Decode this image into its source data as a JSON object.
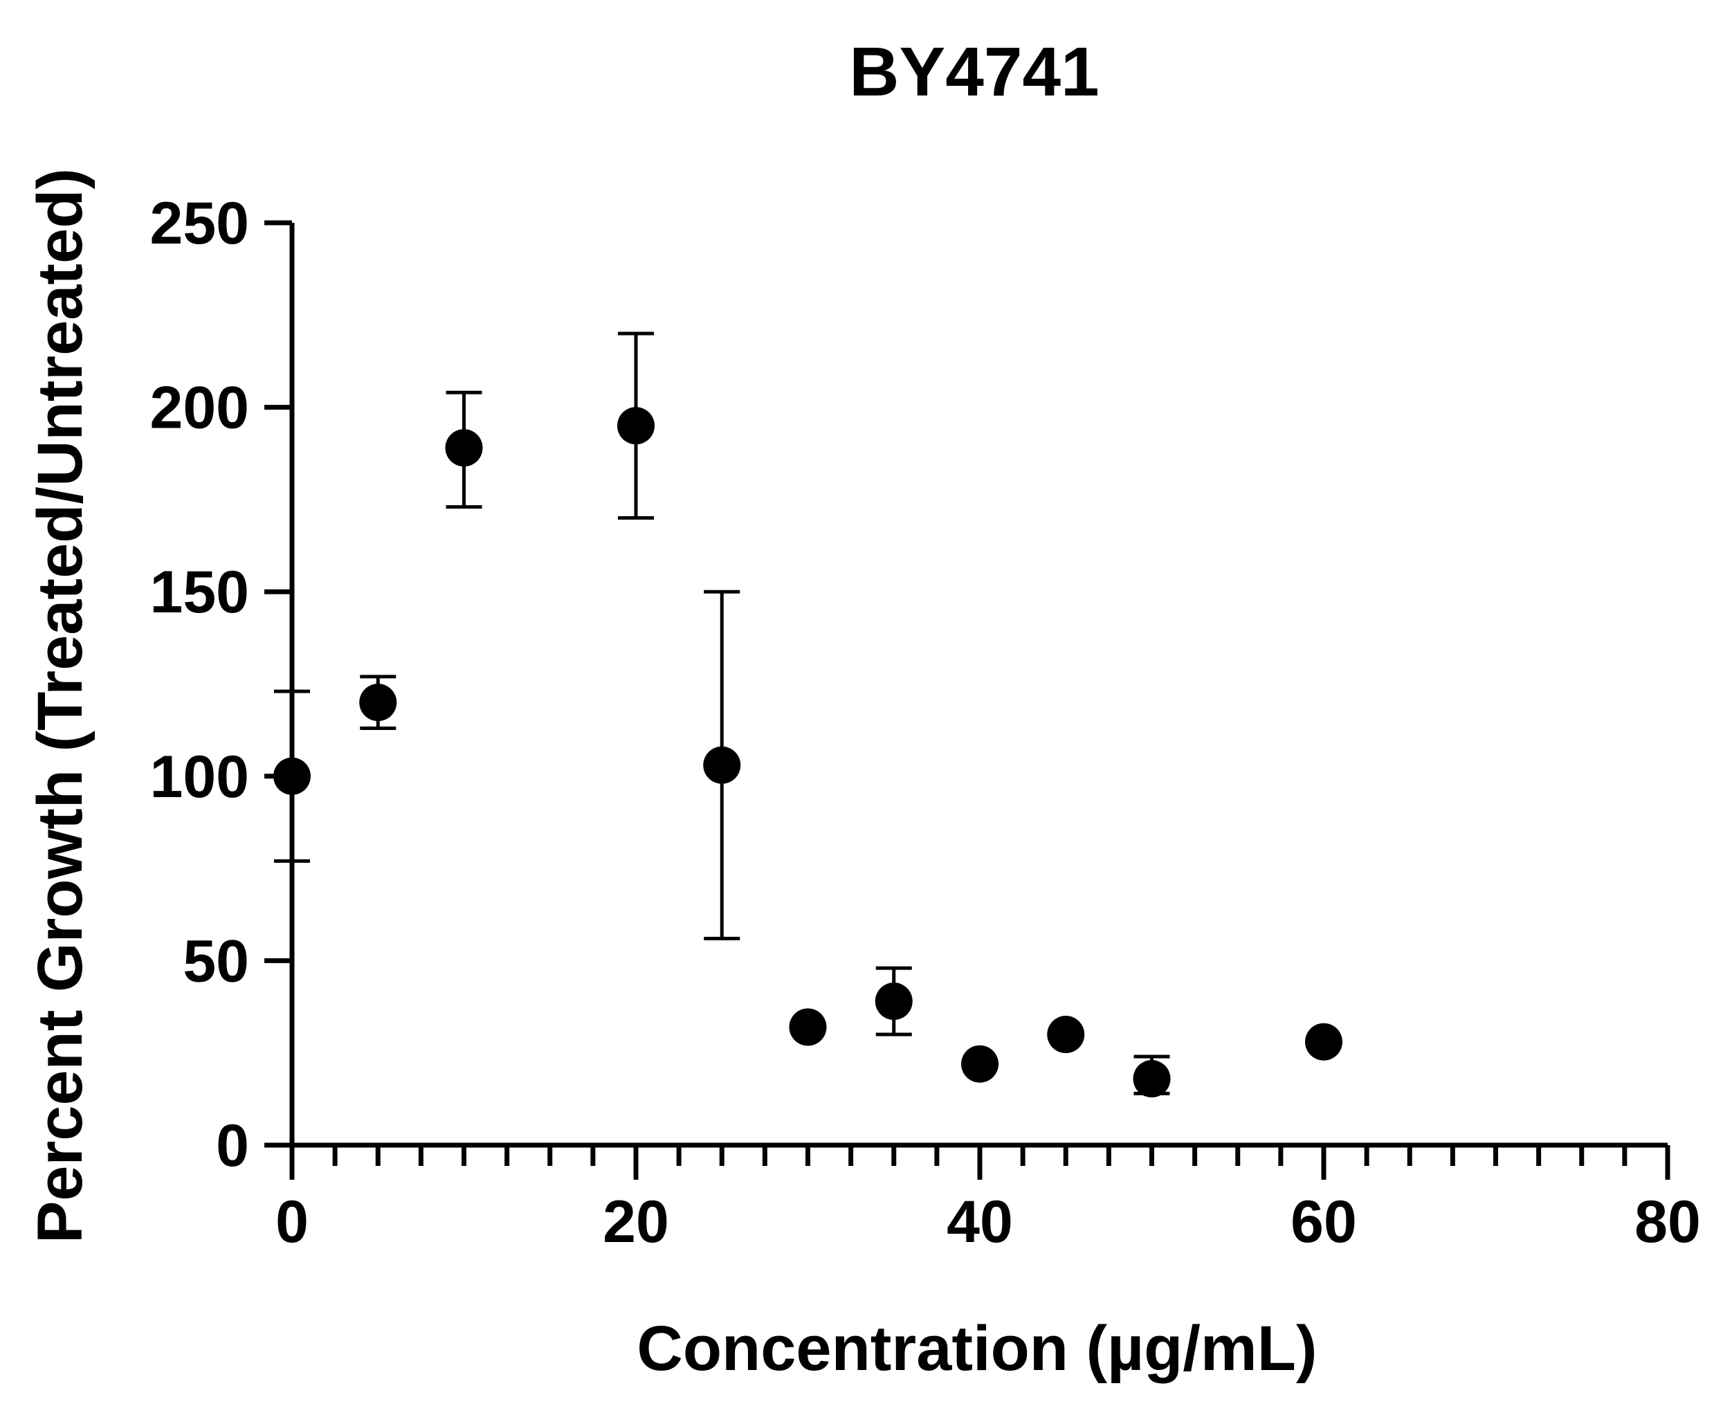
{
  "chart_data": {
    "type": "scatter",
    "title": "BY4741",
    "xlabel": "Concentration (µg/mL)",
    "ylabel": "Percent Growth (Treated/Untreated)",
    "xlim": [
      0,
      80
    ],
    "ylim": [
      0,
      250
    ],
    "x_ticks": [
      0,
      20,
      40,
      60,
      80
    ],
    "x_minor_step": 2.5,
    "y_ticks": [
      0,
      50,
      100,
      150,
      200,
      250
    ],
    "grid": false,
    "legend": "none",
    "marker_color": "#000000",
    "series": [
      {
        "points": [
          {
            "x": 0,
            "y": 100,
            "err_low": 77,
            "err_high": 123
          },
          {
            "x": 5,
            "y": 120,
            "err_low": 113,
            "err_high": 127
          },
          {
            "x": 10,
            "y": 189,
            "err_low": 173,
            "err_high": 204
          },
          {
            "x": 20,
            "y": 195,
            "err_low": 170,
            "err_high": 220
          },
          {
            "x": 25,
            "y": 103,
            "err_low": 56,
            "err_high": 150
          },
          {
            "x": 30,
            "y": 32,
            "err_low": null,
            "err_high": null
          },
          {
            "x": 35,
            "y": 39,
            "err_low": 30,
            "err_high": 48
          },
          {
            "x": 40,
            "y": 22,
            "err_low": null,
            "err_high": null
          },
          {
            "x": 45,
            "y": 30,
            "err_low": null,
            "err_high": null
          },
          {
            "x": 50,
            "y": 18,
            "err_low": 14,
            "err_high": 24
          },
          {
            "x": 60,
            "y": 28,
            "err_low": null,
            "err_high": null
          }
        ]
      }
    ]
  }
}
